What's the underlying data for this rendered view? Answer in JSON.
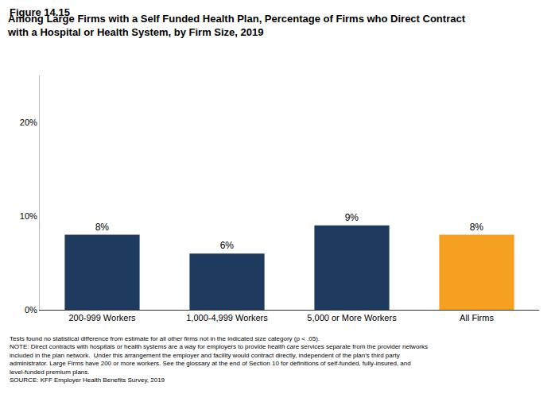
{
  "chart_data": {
    "type": "bar",
    "label": "Figure 14.15",
    "title": [
      "Among Large Firms with a Self Funded Health Plan, Percentage of Firms who Direct Contract",
      "with a Hospital or Health System, by Firm Size, 2019"
    ],
    "categories": [
      "200-999 Workers",
      "1,000-4,999 Workers",
      "5,000 or More Workers",
      "All Firms"
    ],
    "values": [
      8,
      6,
      9,
      8
    ],
    "value_labels": [
      "8%",
      "6%",
      "9%",
      "8%"
    ],
    "data_labels": true,
    "colors": [
      "#1e3a5f",
      "#1e3a5f",
      "#1e3a5f",
      "#f5a020"
    ],
    "ylim": [
      0,
      25
    ],
    "yticks": [
      {
        "value": 0,
        "label": "0%"
      },
      {
        "value": 10,
        "label": "10%"
      },
      {
        "value": 20,
        "label": "20%"
      }
    ],
    "grid": false,
    "footnotes": [
      "Tests found no statistical difference from estimate for all other firms not in the indicated size category (p < .05).",
      "NOTE: Direct contracts with hospitals or health systems are a way for employers to provide health care services separate from the provider networks",
      "included in the plan network.  Under this arrangement the employer and facility would contract directly, independent of the plan’s third party",
      "administrator. Large Firms have 200 or more workers. See the glossary at the end of Section 10 for definitions of self-funded, fully-insured, and",
      "level-funded premium plans.",
      "SOURCE: KFF Employer Health Benefits Survey, 2019"
    ]
  }
}
